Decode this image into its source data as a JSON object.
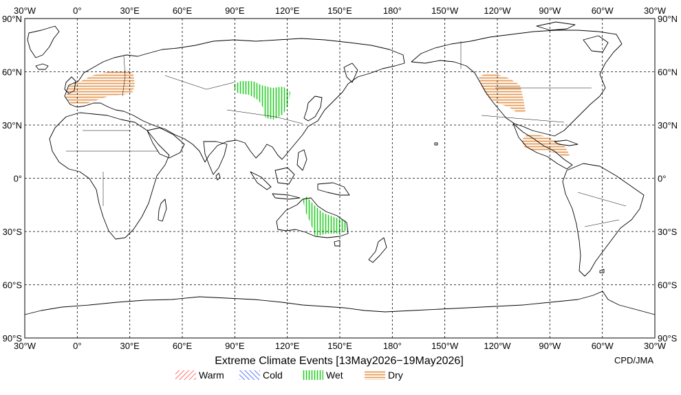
{
  "title": "Extreme Climate Events [13May2026−19May2026]",
  "credit": "CPD/JMA",
  "longitude_ticks": [
    "30°W",
    "0°",
    "30°E",
    "60°E",
    "90°E",
    "120°E",
    "150°E",
    "180°",
    "150°W",
    "120°W",
    "90°W",
    "60°W",
    "30°W"
  ],
  "latitude_ticks": [
    "90°N",
    "60°N",
    "30°N",
    "0°",
    "30°S",
    "60°S",
    "90°S"
  ],
  "legend": [
    {
      "label": "Warm",
      "color": "#ff4d4d",
      "pattern": "diagonal-right"
    },
    {
      "label": "Cold",
      "color": "#3355ff",
      "pattern": "diagonal-left"
    },
    {
      "label": "Wet",
      "color": "#22cc22",
      "pattern": "vertical"
    },
    {
      "label": "Dry",
      "color": "#e69a55",
      "pattern": "horizontal"
    }
  ],
  "events": [
    {
      "region": "Europe",
      "type": "Dry"
    },
    {
      "region": "Central Asia / Mongolia",
      "type": "Wet"
    },
    {
      "region": "Eastern Australia",
      "type": "Wet"
    },
    {
      "region": "Western Canada / Northwestern United States",
      "type": "Dry"
    },
    {
      "region": "Central America / Southern Mexico",
      "type": "Dry"
    }
  ]
}
